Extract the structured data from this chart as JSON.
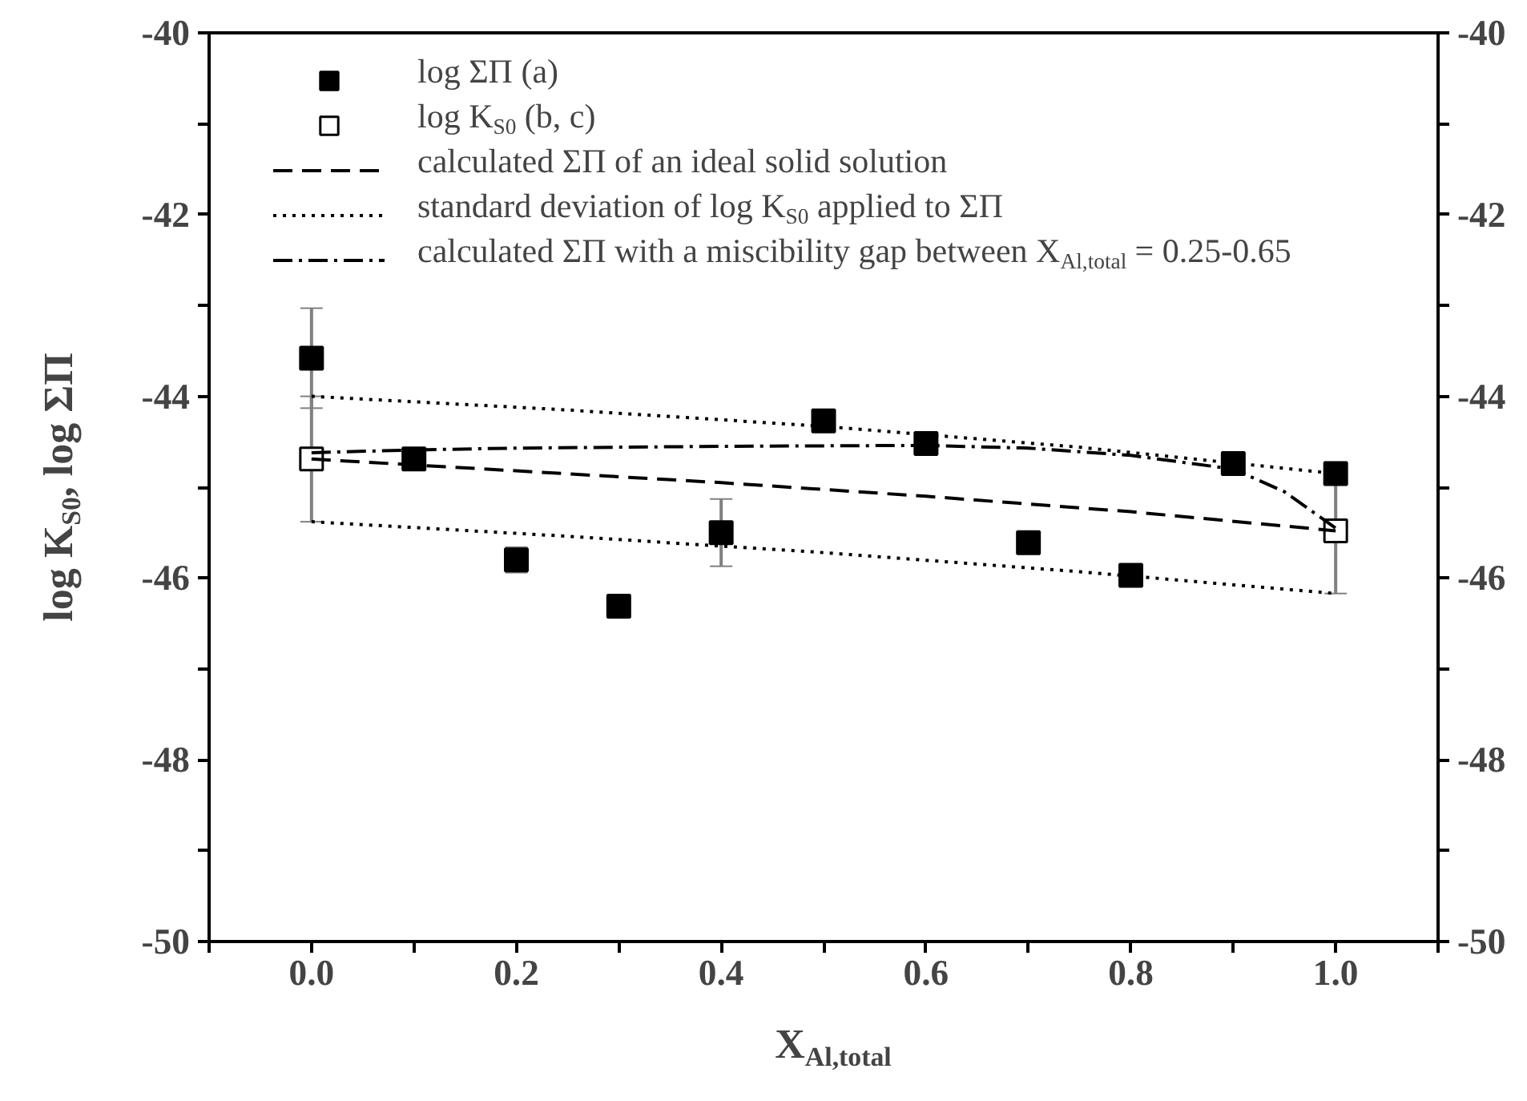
{
  "chart_data": {
    "type": "scatter",
    "xlabel": "X$_{Al,total}$",
    "ylabel": "log K$_{S0}$, log ΣΠ",
    "xlim": [
      -0.1,
      1.1
    ],
    "xticks": [
      {
        "value": -0.1,
        "label": null
      },
      "0.0",
      {
        "value": 0.1,
        "label": null
      },
      {
        "value": 0.2,
        "label": "0.2"
      },
      {
        "value": 0.3,
        "label": null
      },
      {
        "value": 0.4,
        "label": "0.4"
      },
      {
        "value": 0.5,
        "label": null
      },
      {
        "value": 0.6,
        "label": "0.6"
      },
      {
        "value": 0.7,
        "label": null
      },
      {
        "value": 0.8,
        "label": "0.8"
      },
      {
        "value": 0.9,
        "label": null
      },
      {
        "value": 1.0,
        "label": "1.0"
      },
      {
        "value": 1.1,
        "label": null
      }
    ],
    "ylim": [
      -50,
      -40
    ],
    "yticks": [
      -50,
      {
        "value": -49,
        "label": null
      },
      -48,
      {
        "value": -47,
        "label": null
      },
      -46,
      {
        "value": -45,
        "label": null
      },
      -44,
      {
        "value": -43,
        "label": null
      },
      -42,
      {
        "value": -41,
        "label": null
      },
      -40
    ],
    "y2lim": [
      -50,
      -40
    ],
    "y2ticks": [
      -50,
      {
        "value": -49,
        "label": null
      },
      -48,
      {
        "value": -47,
        "label": null
      },
      -46,
      {
        "value": -45,
        "label": null
      },
      -44,
      {
        "value": -43,
        "label": null
      },
      -42,
      {
        "value": -41,
        "label": null
      },
      -40
    ],
    "grid": false,
    "legend": "top left",
    "series": [
      {
        "name": "log ΣΠ (a)",
        "marker": "square",
        "color": "#000000",
        "x": [
          0,
          0.1,
          0.2,
          0.3,
          0.4,
          0.5,
          0.6,
          0.7,
          0.8,
          0.9,
          1.0
        ],
        "values": [
          -43.58,
          -44.69,
          -45.8,
          -46.31,
          -45.5,
          -44.27,
          -44.52,
          -45.61,
          -45.97,
          -44.74,
          -44.85
        ],
        "errors": [
          0.55,
          null,
          0.14,
          null,
          0.37,
          null,
          null,
          null,
          null,
          null,
          null
        ]
      },
      {
        "name": "log K$_{S0}$ (b, c)",
        "marker": "square",
        "color": "#ffffff",
        "x": [
          0,
          1.0
        ],
        "values": [
          -44.69,
          -45.48
        ],
        "errors": [
          0.69,
          0.69
        ]
      },
      {
        "name": "calculated ΣΠ of an ideal solid solution",
        "type": "line",
        "line_style": "dashed",
        "color": "#000000",
        "x": [
          0,
          0.2,
          0.4,
          0.6,
          0.8,
          1.0
        ],
        "values": [
          -44.69,
          -44.82,
          -44.95,
          -45.1,
          -45.27,
          -45.48
        ]
      },
      {
        "name": "standard deviation of log K$_{S0}$ applied to ΣΠ",
        "type": "line",
        "line_style": "dotted",
        "color": "#000000",
        "x": [
          0,
          0.25,
          0.5,
          0.75,
          1.0
        ],
        "values": [
          -44.0,
          -44.15,
          -44.33,
          -44.56,
          -44.85
        ]
      },
      {
        "type": "line",
        "line_style": "dotted",
        "color": "#000000",
        "x": [
          0,
          0.25,
          0.5,
          0.75,
          1.0
        ],
        "values": [
          -45.38,
          -45.54,
          -45.72,
          -45.93,
          -46.17
        ]
      },
      {
        "name": "calculated ΣΠ with a miscibility gap between X$_{Al,total}$ = 0.25-0.65",
        "type": "line",
        "line_style": "dashdot",
        "color": "#000000",
        "x": [
          0,
          0.1,
          0.2,
          0.4,
          0.6,
          0.7,
          0.8,
          0.9,
          0.95,
          1.0
        ],
        "values": [
          -44.62,
          -44.59,
          -44.57,
          -44.55,
          -44.54,
          -44.57,
          -44.65,
          -44.8,
          -45.05,
          -45.45
        ]
      }
    ]
  }
}
